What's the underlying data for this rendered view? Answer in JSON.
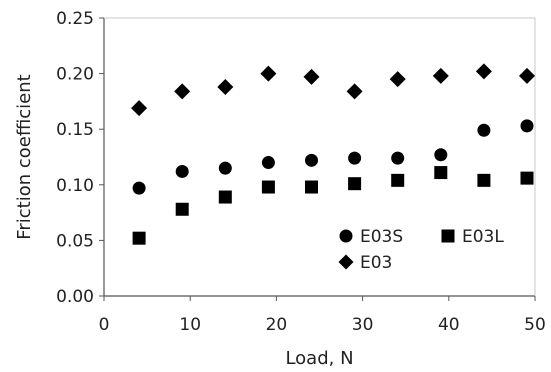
{
  "chart_data": {
    "type": "scatter",
    "xlabel": "Load, N",
    "ylabel": "Friction coefficient",
    "xlim": [
      0,
      50
    ],
    "ylim": [
      0,
      0.25
    ],
    "x_ticks": [
      "0",
      "10",
      "20",
      "30",
      "40",
      "50"
    ],
    "y_ticks": [
      "0.00",
      "0.05",
      "0.10",
      "0.15",
      "0.20",
      "0.25"
    ],
    "grid": false,
    "legend_position": "lower-right",
    "series": [
      {
        "name": "E03S",
        "marker": "circle",
        "color": "#000000",
        "x": [
          5,
          10,
          15,
          20,
          25,
          30,
          35,
          40,
          45,
          50
        ],
        "y": [
          0.097,
          0.112,
          0.115,
          0.12,
          0.122,
          0.124,
          0.124,
          0.127,
          0.149,
          0.153
        ]
      },
      {
        "name": "E03L",
        "marker": "square",
        "color": "#000000",
        "x": [
          5,
          10,
          15,
          20,
          25,
          30,
          35,
          40,
          45,
          50
        ],
        "y": [
          0.052,
          0.078,
          0.089,
          0.098,
          0.098,
          0.101,
          0.104,
          0.111,
          0.104,
          0.106
        ]
      },
      {
        "name": "E03",
        "marker": "diamond",
        "color": "#000000",
        "x": [
          5,
          10,
          15,
          20,
          25,
          30,
          35,
          40,
          45,
          50
        ],
        "y": [
          0.169,
          0.184,
          0.188,
          0.2,
          0.197,
          0.184,
          0.195,
          0.198,
          0.202,
          0.198
        ]
      }
    ]
  }
}
